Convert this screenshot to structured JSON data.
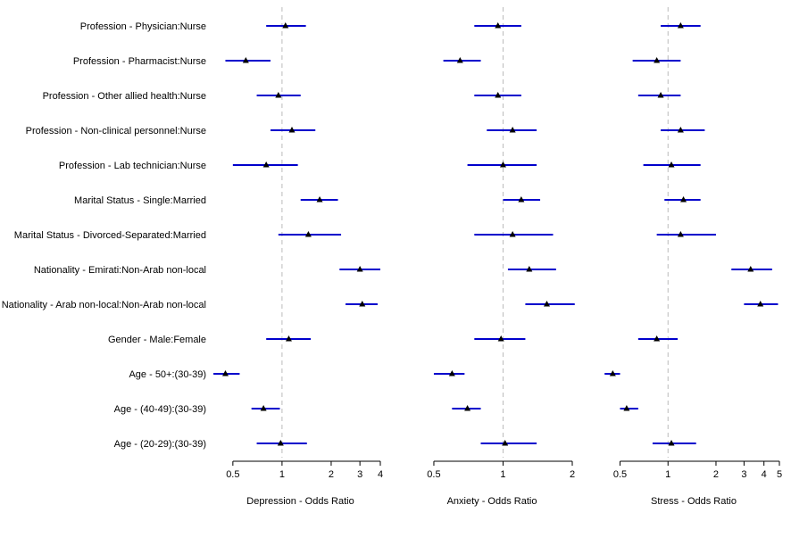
{
  "chart_data": {
    "type": "forest",
    "row_labels": [
      "Profession - Physician:Nurse",
      "Profession - Pharmacist:Nurse",
      "Profession - Other allied health:Nurse",
      "Profession - Non-clinical personnel:Nurse",
      "Profession - Lab technician:Nurse",
      "Marital Status - Single:Married",
      "Marital Status - Divorced-Separated:Married",
      "Nationality - Emirati:Non-Arab non-local",
      "Nationality - Arab non-local:Non-Arab non-local",
      "Gender - Male:Female",
      "Age - 50+:(30-39)",
      "Age - (40-49):(30-39)",
      "Age - (20-29):(30-39)"
    ],
    "reference_line": 1,
    "panels": [
      {
        "xlabel": "Depression - Odds Ratio",
        "scale": "log",
        "xlim": [
          0.42,
          4.0
        ],
        "ticks": [
          0.5,
          1,
          2,
          3,
          4
        ],
        "tick_labels": [
          "0.5",
          "1",
          "2",
          "3",
          "4"
        ],
        "estimates": [
          1.05,
          0.6,
          0.95,
          1.15,
          0.8,
          1.7,
          1.45,
          3.0,
          3.1,
          1.1,
          0.45,
          0.77,
          0.98
        ],
        "lower": [
          0.8,
          0.45,
          0.7,
          0.85,
          0.5,
          1.3,
          0.95,
          2.25,
          2.45,
          0.8,
          0.38,
          0.65,
          0.7
        ],
        "upper": [
          1.4,
          0.85,
          1.3,
          1.6,
          1.25,
          2.2,
          2.3,
          4.0,
          3.85,
          1.5,
          0.55,
          0.97,
          1.42
        ]
      },
      {
        "xlabel": "Anxiety - Odds Ratio",
        "scale": "log",
        "xlim": [
          0.4,
          2.0
        ],
        "ticks": [
          0.5,
          1,
          2
        ],
        "tick_labels": [
          "0.5",
          "1",
          "2"
        ],
        "estimates": [
          0.95,
          0.65,
          0.95,
          1.1,
          1.0,
          1.2,
          1.1,
          1.3,
          1.55,
          0.98,
          0.6,
          0.7,
          1.02
        ],
        "lower": [
          0.75,
          0.55,
          0.75,
          0.85,
          0.7,
          1.0,
          0.75,
          1.05,
          1.25,
          0.75,
          0.5,
          0.6,
          0.8
        ],
        "upper": [
          1.2,
          0.8,
          1.2,
          1.4,
          1.4,
          1.45,
          1.65,
          1.7,
          2.05,
          1.25,
          0.68,
          0.8,
          1.4
        ]
      },
      {
        "xlabel": "Stress - Odds Ratio",
        "scale": "log",
        "xlim": [
          0.42,
          5.0
        ],
        "ticks": [
          0.5,
          1,
          2,
          3,
          4,
          5
        ],
        "tick_labels": [
          "0.5",
          "1",
          "2",
          "3",
          "4",
          "5"
        ],
        "estimates": [
          1.2,
          0.85,
          0.9,
          1.2,
          1.05,
          1.25,
          1.2,
          3.3,
          3.8,
          0.85,
          0.45,
          0.55,
          1.05
        ],
        "lower": [
          0.9,
          0.6,
          0.65,
          0.9,
          0.7,
          0.95,
          0.85,
          2.5,
          3.0,
          0.65,
          0.4,
          0.5,
          0.8
        ],
        "upper": [
          1.6,
          1.2,
          1.2,
          1.7,
          1.6,
          1.6,
          2.0,
          4.5,
          4.9,
          1.15,
          0.5,
          0.65,
          1.5
        ]
      }
    ],
    "colors": {
      "interval": "#0000cc",
      "point": "#000000",
      "reference": "#bbbbbb",
      "axis": "#000000"
    }
  }
}
